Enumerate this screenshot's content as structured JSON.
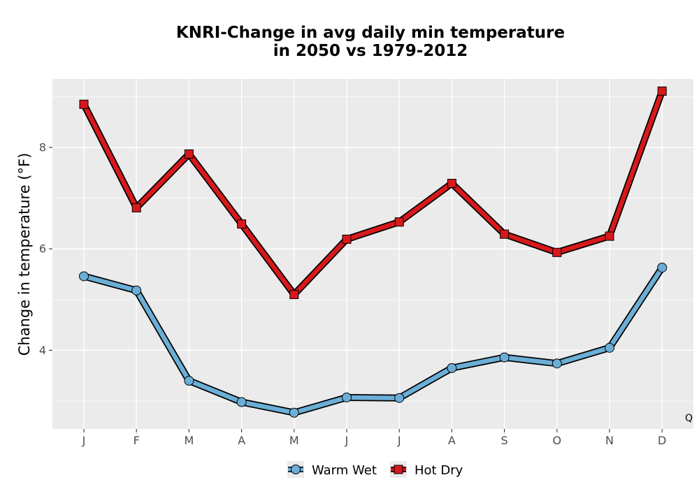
{
  "chart_data": {
    "type": "line",
    "title": "KNRI-Change in avg daily min temperature",
    "subtitle": "in 2050 vs 1979-2012",
    "xlabel": "",
    "ylabel": "Change in temperature (°F)",
    "categories": [
      "J",
      "F",
      "M",
      "A",
      "M",
      "J",
      "J",
      "A",
      "S",
      "O",
      "N",
      "D"
    ],
    "ylim": [
      2.45,
      9.35
    ],
    "yticks": [
      4,
      6,
      8
    ],
    "grid": true,
    "legend_position": "bottom",
    "corner_label": "Q",
    "series": [
      {
        "name": "Warm Wet",
        "marker": "circle",
        "color": "#6baed6",
        "values": [
          5.46,
          5.18,
          3.4,
          2.98,
          2.77,
          3.07,
          3.06,
          3.65,
          3.86,
          3.74,
          4.05,
          5.63
        ]
      },
      {
        "name": "Hot Dry",
        "marker": "square",
        "color": "#d7191c",
        "values": [
          8.85,
          6.81,
          7.87,
          6.49,
          5.1,
          6.19,
          6.53,
          7.29,
          6.29,
          5.93,
          6.25,
          9.11
        ]
      }
    ]
  }
}
